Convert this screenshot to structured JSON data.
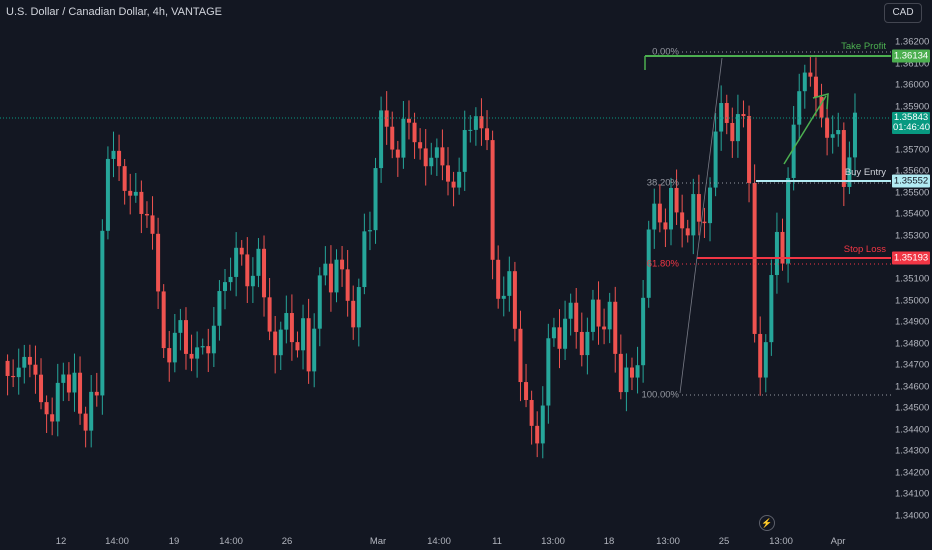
{
  "header": {
    "title": "U.S. Dollar / Canadian Dollar, 4h, VANTAGE",
    "currency": "CAD"
  },
  "colors": {
    "up": "#26a69a",
    "down": "#ef5350",
    "background": "#131722",
    "take_profit": "#4caf50",
    "stop_loss": "#f23645",
    "buy_entry": "#b2ebf2",
    "current_price": "#089981"
  },
  "chart_data": {
    "type": "candlestick",
    "title": "U.S. Dollar / Canadian Dollar, 4h, VANTAGE",
    "ylim": [
      1.3395,
      1.3629
    ],
    "y_ticks": [
      "1.36200",
      "1.36100",
      "1.36000",
      "1.35900",
      "1.35800",
      "1.35700",
      "1.35600",
      "1.35500",
      "1.35400",
      "1.35300",
      "1.35200",
      "1.35100",
      "1.35000",
      "1.34900",
      "1.34800",
      "1.34700",
      "1.34600",
      "1.34500",
      "1.34400",
      "1.34300",
      "1.34200",
      "1.34100",
      "1.34000"
    ],
    "x_ticks": [
      "12",
      "14:00",
      "19",
      "14:00",
      "26",
      "Mar",
      "14:00",
      "11",
      "13:00",
      "18",
      "13:00",
      "25",
      "13:00",
      "Apr"
    ],
    "grid": false,
    "close_path": [
      [
        0,
        1.3472
      ],
      [
        5,
        1.3465
      ],
      [
        10,
        1.346
      ],
      [
        15,
        1.347
      ],
      [
        20,
        1.3478
      ],
      [
        25,
        1.3468
      ],
      [
        30,
        1.3462
      ],
      [
        35,
        1.3456
      ],
      [
        40,
        1.345
      ],
      [
        45,
        1.344
      ],
      [
        50,
        1.346
      ],
      [
        55,
        1.347
      ],
      [
        60,
        1.3458
      ],
      [
        65,
        1.3462
      ],
      [
        70,
        1.3448
      ],
      [
        75,
        1.3444
      ],
      [
        80,
        1.3456
      ],
      [
        85,
        1.3452
      ],
      [
        90,
        1.3535
      ],
      [
        95,
        1.3569
      ],
      [
        100,
        1.3566
      ],
      [
        105,
        1.356
      ],
      [
        110,
        1.3555
      ],
      [
        115,
        1.355
      ],
      [
        120,
        1.3546
      ],
      [
        125,
        1.354
      ],
      [
        130,
        1.3544
      ],
      [
        135,
        1.353
      ],
      [
        140,
        1.35
      ],
      [
        145,
        1.348
      ],
      [
        150,
        1.3475
      ],
      [
        155,
        1.3482
      ],
      [
        160,
        1.3488
      ],
      [
        165,
        1.3479
      ],
      [
        170,
        1.3475
      ],
      [
        175,
        1.3474
      ],
      [
        180,
        1.3478
      ],
      [
        185,
        1.348
      ],
      [
        190,
        1.3488
      ],
      [
        195,
        1.35
      ],
      [
        200,
        1.351
      ],
      [
        205,
        1.3515
      ],
      [
        210,
        1.3522
      ],
      [
        215,
        1.3518
      ],
      [
        220,
        1.351
      ],
      [
        225,
        1.3514
      ],
      [
        230,
        1.352
      ],
      [
        235,
        1.35
      ],
      [
        240,
        1.349
      ],
      [
        245,
        1.3475
      ],
      [
        250,
        1.3482
      ],
      [
        255,
        1.3495
      ],
      [
        260,
        1.3485
      ],
      [
        265,
        1.3475
      ],
      [
        270,
        1.3488
      ],
      [
        275,
        1.347
      ],
      [
        280,
        1.349
      ],
      [
        285,
        1.3508
      ],
      [
        290,
        1.3515
      ],
      [
        295,
        1.3508
      ],
      [
        300,
        1.352
      ],
      [
        305,
        1.351
      ],
      [
        310,
        1.35
      ],
      [
        315,
        1.3492
      ],
      [
        320,
        1.3505
      ],
      [
        325,
        1.3528
      ],
      [
        330,
        1.3535
      ],
      [
        335,
        1.3565
      ],
      [
        340,
        1.3585
      ],
      [
        345,
        1.3578
      ],
      [
        350,
        1.3574
      ],
      [
        355,
        1.3568
      ],
      [
        360,
        1.358
      ],
      [
        365,
        1.3582
      ],
      [
        370,
        1.3578
      ],
      [
        375,
        1.357
      ],
      [
        380,
        1.3558
      ],
      [
        385,
        1.3568
      ],
      [
        390,
        1.3575
      ],
      [
        395,
        1.356
      ],
      [
        400,
        1.3552
      ],
      [
        405,
        1.3556
      ],
      [
        410,
        1.3562
      ],
      [
        415,
        1.3575
      ],
      [
        420,
        1.3578
      ],
      [
        425,
        1.359
      ],
      [
        430,
        1.358
      ],
      [
        435,
        1.357
      ],
      [
        440,
        1.352
      ],
      [
        445,
        1.3505
      ],
      [
        450,
        1.35
      ],
      [
        455,
        1.351
      ],
      [
        460,
        1.349
      ],
      [
        465,
        1.3465
      ],
      [
        470,
        1.345
      ],
      [
        475,
        1.344
      ],
      [
        480,
        1.3438
      ],
      [
        485,
        1.3452
      ],
      [
        490,
        1.3478
      ],
      [
        495,
        1.3488
      ],
      [
        500,
        1.3482
      ],
      [
        505,
        1.349
      ],
      [
        510,
        1.3495
      ],
      [
        515,
        1.3488
      ],
      [
        520,
        1.3478
      ],
      [
        525,
        1.3482
      ],
      [
        530,
        1.3498
      ],
      [
        535,
        1.3492
      ],
      [
        540,
        1.3488
      ],
      [
        545,
        1.3495
      ],
      [
        550,
        1.3475
      ],
      [
        555,
        1.3462
      ],
      [
        560,
        1.3468
      ],
      [
        565,
        1.346
      ],
      [
        570,
        1.3472
      ],
      [
        575,
        1.3505
      ],
      [
        580,
        1.353
      ],
      [
        585,
        1.3542
      ],
      [
        590,
        1.354
      ],
      [
        595,
        1.3535
      ],
      [
        600,
        1.3548
      ],
      [
        605,
        1.354
      ],
      [
        610,
        1.3538
      ],
      [
        615,
        1.353
      ],
      [
        620,
        1.3545
      ],
      [
        625,
        1.3538
      ],
      [
        630,
        1.354
      ],
      [
        635,
        1.355
      ],
      [
        640,
        1.3575
      ],
      [
        645,
        1.3595
      ],
      [
        650,
        1.3585
      ],
      [
        655,
        1.357
      ],
      [
        660,
        1.3585
      ],
      [
        665,
        1.359
      ],
      [
        670,
        1.3555
      ],
      [
        675,
        1.348
      ],
      [
        680,
        1.3465
      ],
      [
        685,
        1.3485
      ],
      [
        690,
        1.351
      ],
      [
        695,
        1.3528
      ],
      [
        700,
        1.352
      ],
      [
        705,
        1.356
      ],
      [
        710,
        1.3578
      ],
      [
        715,
        1.3595
      ],
      [
        720,
        1.361
      ],
      [
        725,
        1.3605
      ],
      [
        730,
        1.359
      ],
      [
        735,
        1.3585
      ],
      [
        740,
        1.358
      ],
      [
        745,
        1.3576
      ],
      [
        750,
        1.3575
      ],
      [
        755,
        1.3555
      ],
      [
        760,
        1.357
      ],
      [
        765,
        1.3584
      ]
    ],
    "annotations": {
      "take_profit": {
        "label": "Take Profit",
        "price": "1.36134"
      },
      "buy_entry": {
        "label": "Buy Entry",
        "price": "1.35552"
      },
      "stop_loss": {
        "label": "Stop Loss",
        "price": "1.35193"
      },
      "current_price": {
        "price": "1.35843",
        "countdown": "01:46:40"
      },
      "fib_levels": [
        {
          "label": "0.00%",
          "value": 1.36134
        },
        {
          "label": "38.20%",
          "value": 1.35552
        },
        {
          "label": "61.80%",
          "value": 1.35193
        },
        {
          "label": "100.00%",
          "value": 1.34555
        }
      ]
    }
  }
}
